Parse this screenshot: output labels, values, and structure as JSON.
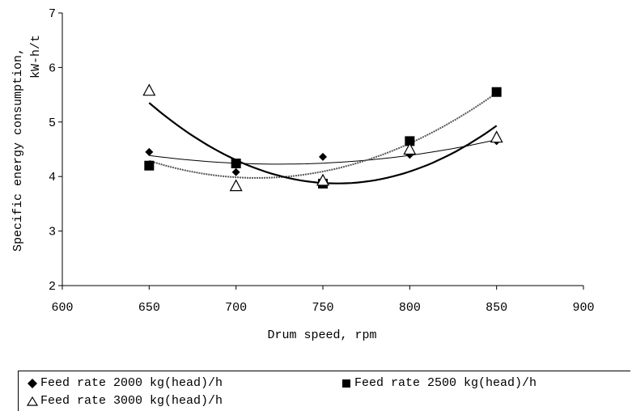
{
  "chart_data": {
    "type": "scatter",
    "xlabel": "Drum speed, rpm",
    "ylabel_line1": "Specific energy consumption,",
    "ylabel_line2": "kW-h/t",
    "xlim": [
      600,
      900
    ],
    "ylim": [
      2,
      7
    ],
    "x_ticks": [
      600,
      650,
      700,
      750,
      800,
      850,
      900
    ],
    "y_ticks": [
      2,
      3,
      4,
      5,
      6,
      7
    ],
    "grid": false,
    "legend_position": "bottom",
    "series": [
      {
        "name": "Feed rate 2000 kg(head)/h",
        "marker": "diamond",
        "x": [
          650,
          700,
          750,
          800,
          850
        ],
        "y": [
          4.45,
          4.08,
          4.36,
          4.4,
          4.65
        ],
        "trend": {
          "type": "polynomial-2",
          "color": "#000000",
          "width": 1
        }
      },
      {
        "name": "Feed rate 2500 kg(head)/h",
        "marker": "square",
        "x": [
          650,
          700,
          750,
          800,
          850
        ],
        "y": [
          4.2,
          4.24,
          3.87,
          4.65,
          5.55
        ],
        "trend": {
          "type": "polynomial-2",
          "color": "#555555",
          "width": 2,
          "dash": "2,1"
        }
      },
      {
        "name": "Feed rate 3000 kg(head)/h",
        "marker": "triangle-open",
        "x": [
          650,
          700,
          750,
          800,
          850
        ],
        "y": [
          5.58,
          3.83,
          3.93,
          4.5,
          4.72
        ],
        "trend": {
          "type": "polynomial-2",
          "color": "#000000",
          "width": 2.2
        }
      }
    ]
  }
}
